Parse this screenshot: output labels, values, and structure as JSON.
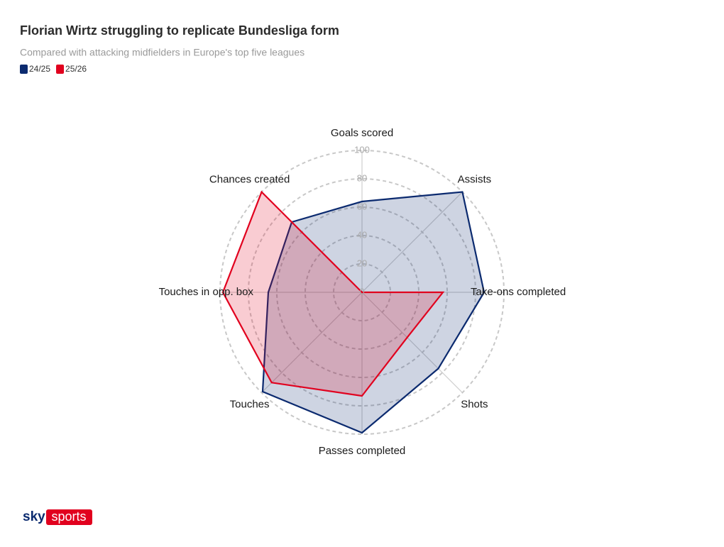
{
  "chart_data": {
    "type": "radar",
    "title": "Florian Wirtz struggling to replicate Bundesliga form",
    "subtitle": "Compared with attacking midfielders in Europe's top five leagues",
    "categories": [
      "Goals scored",
      "Assists",
      "Take-ons completed",
      "Shots",
      "Passes completed",
      "Touches",
      "Touches in opp. box",
      "Chances created"
    ],
    "series": [
      {
        "name": "24/25",
        "color": "#0b2a6f",
        "values": [
          64,
          100,
          86,
          76,
          99,
          99,
          66,
          70
        ]
      },
      {
        "name": "25/26",
        "color": "#e1001e",
        "values": [
          0,
          0,
          57,
          45,
          73,
          90,
          98,
          100
        ]
      }
    ],
    "rlim": [
      0,
      100
    ],
    "rticks": [
      0,
      20,
      40,
      60,
      80,
      100
    ],
    "grid": true,
    "legend": "top-left"
  },
  "branding": [
    "sky",
    "sports"
  ]
}
